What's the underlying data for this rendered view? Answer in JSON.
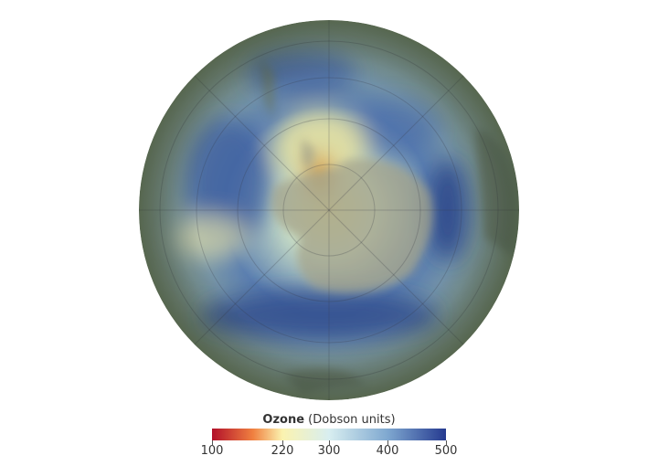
{
  "map": {
    "variable": "Ozone",
    "projection": "south-polar orthographic",
    "colors": {
      "ocean_tint": "#5a6b5a",
      "land": "#a8a890",
      "hole": "#e8a030"
    }
  },
  "legend": {
    "title": "Ozone",
    "units": "(Dobson units)",
    "min": 100,
    "max": 500,
    "ticks": [
      "100",
      "220",
      "300",
      "400",
      "500"
    ],
    "tick_values": [
      100,
      220,
      300,
      400,
      500
    ],
    "color_stops": [
      {
        "value": 100,
        "color": "#b2102a"
      },
      {
        "value": 170,
        "color": "#f08040"
      },
      {
        "value": 220,
        "color": "#fbf3b0"
      },
      {
        "value": 300,
        "color": "#d8eef0"
      },
      {
        "value": 400,
        "color": "#7fa8d0"
      },
      {
        "value": 500,
        "color": "#253a90"
      }
    ]
  }
}
